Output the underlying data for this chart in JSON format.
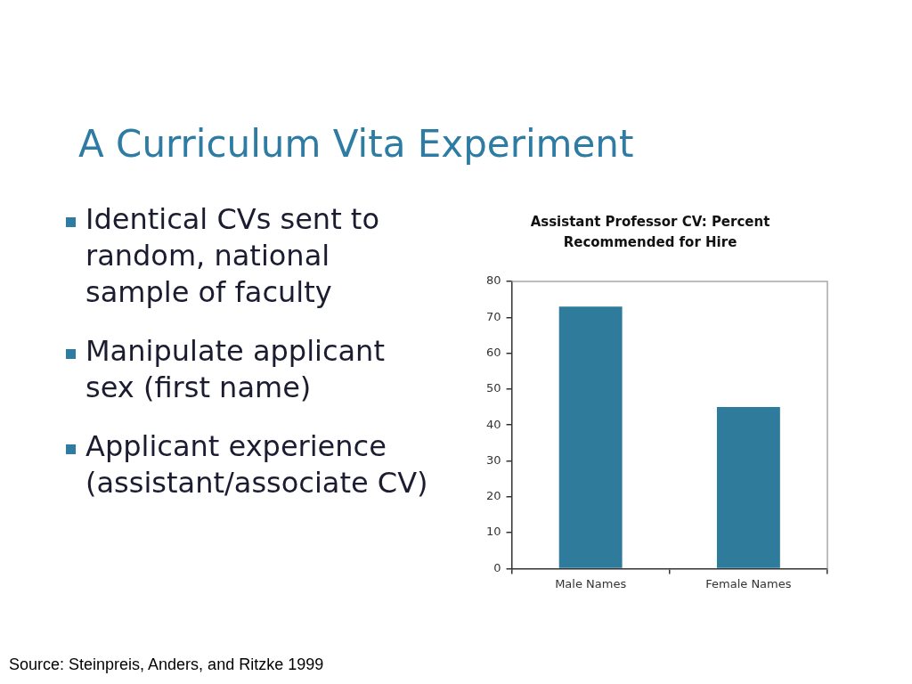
{
  "chart_data": {
    "type": "bar",
    "title": "A Curriculum Vita Experiment",
    "subtitle": "Assistant Professor CV: Percent Recommended for Hire",
    "categories": [
      "Male Names",
      "Female Names"
    ],
    "values": [
      73,
      45
    ],
    "color": "#2e7b9c",
    "ylim": [
      0,
      80
    ],
    "yticks": [
      0,
      10,
      20,
      30,
      40,
      50,
      60,
      70,
      80
    ],
    "grid": false,
    "legend": false,
    "annotations": [
      "Identical CVs sent to random, national sample of faculty",
      "Manipulate applicant sex (first name)",
      "Applicant experience (assistant/associate CV)",
      "Source: Steinpreis, Anders, and Ritzke 1999"
    ]
  }
}
